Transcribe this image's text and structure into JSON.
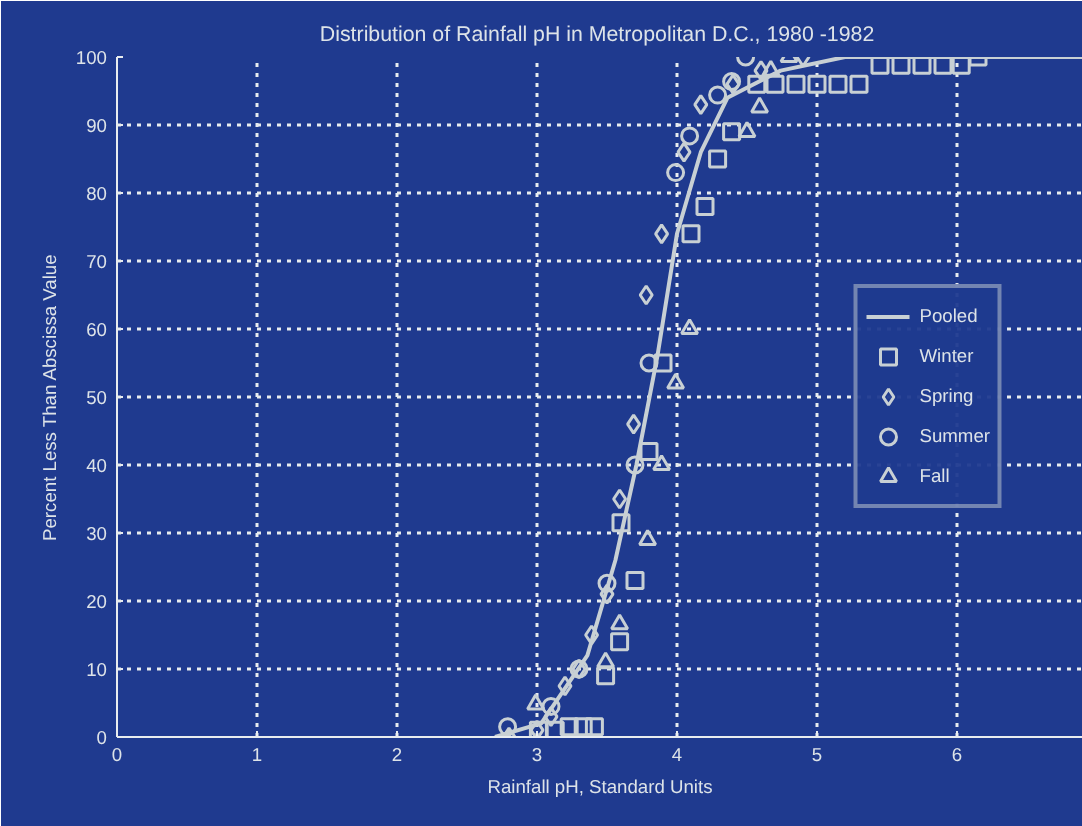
{
  "chart_data": {
    "type": "scatter",
    "title": "Distribution of Rainfall pH in Metropolitan D.C.,  1980 -1982",
    "xlabel": "Rainfall pH, Standard Units",
    "ylabel": "Percent Less Than Abscissa Value",
    "xlim": [
      0,
      6.9
    ],
    "xticks": [
      0,
      1,
      2,
      3,
      4,
      5,
      6
    ],
    "ylim": [
      0,
      100
    ],
    "yticks": [
      0,
      10,
      20,
      30,
      40,
      50,
      60,
      70,
      80,
      90,
      100
    ],
    "grid": true,
    "legend": "right",
    "series": [
      {
        "name": "Pooled",
        "type": "line",
        "line_style": "solid",
        "color": "#c8d0d4",
        "x": [
          2.7,
          3.03,
          3.36,
          3.56,
          3.71,
          3.86,
          4.0,
          4.17,
          4.36,
          4.74,
          5.2,
          6.9
        ],
        "values": [
          0,
          2,
          12,
          26,
          40,
          56,
          74,
          86,
          94,
          98,
          100,
          100
        ]
      },
      {
        "name": "Winter",
        "marker": "square",
        "color": "#c8d0d4",
        "x": [
          3.01,
          3.13,
          3.23,
          3.33,
          3.41,
          3.49,
          3.59,
          3.7,
          3.6,
          3.8,
          3.9,
          4.1,
          4.2,
          4.29,
          4.39,
          4.57,
          4.7,
          4.85,
          5.0,
          5.15,
          5.3,
          5.45,
          5.6,
          5.75,
          5.9,
          6.03,
          6.15
        ],
        "values": [
          1,
          1,
          1.5,
          1.5,
          1.5,
          9,
          14,
          23,
          31.5,
          42,
          55,
          74,
          78,
          85,
          89,
          96,
          96,
          96,
          96,
          96,
          96,
          98.8,
          98.8,
          98.8,
          98.8,
          98.8,
          100
        ]
      },
      {
        "name": "Spring",
        "marker": "diamond",
        "color": "#c8d0d4",
        "x": [
          2.8,
          3.0,
          3.1,
          3.2,
          3.3,
          3.39,
          3.5,
          3.59,
          3.69,
          3.78,
          3.89,
          4.05,
          4.17,
          4.4,
          4.6,
          4.9
        ],
        "values": [
          0,
          1,
          3,
          7.5,
          10,
          15,
          21,
          35,
          46,
          65,
          74,
          86,
          93,
          96,
          98,
          100
        ]
      },
      {
        "name": "Summer",
        "marker": "circle",
        "color": "#c8d0d4",
        "x": [
          2.79,
          3.1,
          3.3,
          3.5,
          3.7,
          3.8,
          3.99,
          4.09,
          4.29,
          4.39,
          4.49
        ],
        "values": [
          1.5,
          4.5,
          10,
          22.6,
          40,
          55,
          83,
          88.4,
          94.4,
          96.4,
          100
        ]
      },
      {
        "name": "Fall",
        "marker": "triangle",
        "color": "#c8d0d4",
        "x": [
          2.99,
          3.49,
          3.59,
          3.79,
          3.89,
          3.99,
          4.09,
          4.5,
          4.59,
          4.67,
          4.8
        ],
        "values": [
          4.8,
          11,
          16.6,
          29,
          40,
          52,
          60,
          89,
          92.6,
          98,
          100
        ]
      }
    ]
  }
}
